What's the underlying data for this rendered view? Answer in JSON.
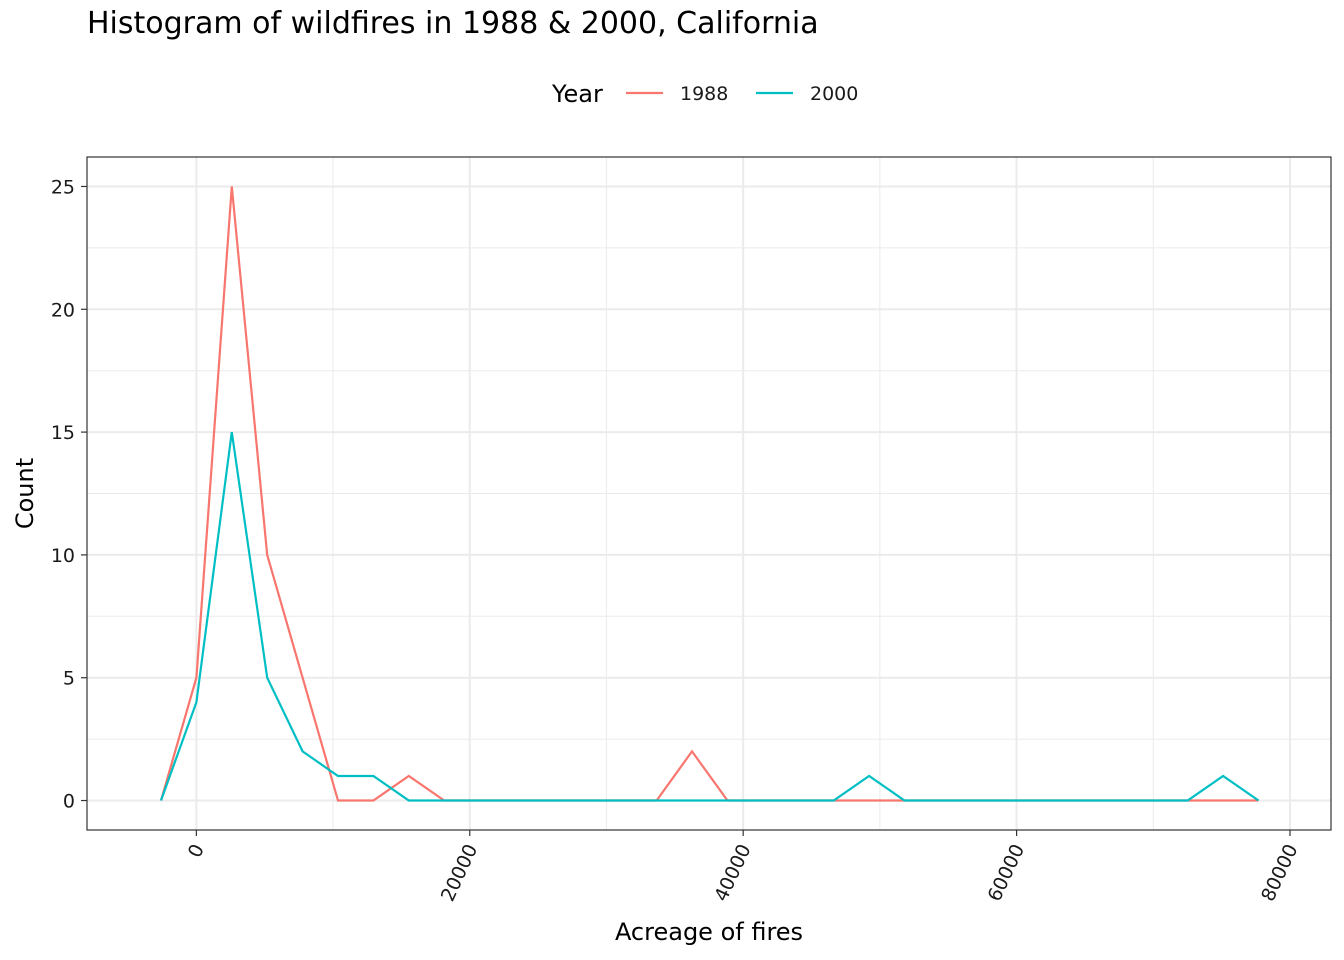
{
  "chart_data": {
    "type": "line",
    "title": "Histogram of wildfires in 1988 & 2000, California",
    "xlabel": "Acreage of fires",
    "ylabel": "Count",
    "legend_title": "Year",
    "legend_position": "top",
    "grid": true,
    "xlim": [
      -8000,
      83000
    ],
    "ylim": [
      -1.2,
      26.2
    ],
    "x_ticks": [
      0,
      20000,
      40000,
      60000,
      80000
    ],
    "x_tick_labels": [
      "0",
      "20000",
      "40000",
      "60000",
      "80000"
    ],
    "x_tick_rotation": 65,
    "y_ticks": [
      0,
      5,
      10,
      15,
      20,
      25
    ],
    "y_tick_labels": [
      "0",
      "5",
      "10",
      "15",
      "20",
      "25"
    ],
    "x": [
      -2590,
      0,
      2590,
      5180,
      7770,
      10360,
      12950,
      15540,
      18130,
      20720,
      23310,
      25900,
      28490,
      31080,
      33670,
      36260,
      38850,
      41440,
      44030,
      46620,
      49210,
      51800,
      54390,
      56980,
      59570,
      62160,
      64750,
      67340,
      69930,
      72520,
      75110,
      77700
    ],
    "series": [
      {
        "name": "1988",
        "color": "#F8766D",
        "values": [
          0,
          5,
          25,
          10,
          5,
          0,
          0,
          1,
          0,
          0,
          0,
          0,
          0,
          0,
          0,
          2,
          0,
          0,
          0,
          0,
          0,
          0,
          0,
          0,
          0,
          0,
          0,
          0,
          0,
          0,
          0,
          0
        ]
      },
      {
        "name": "2000",
        "color": "#00BFC4",
        "values": [
          0,
          4,
          15,
          5,
          2,
          1,
          1,
          0,
          0,
          0,
          0,
          0,
          0,
          0,
          0,
          0,
          0,
          0,
          0,
          0,
          1,
          0,
          0,
          0,
          0,
          0,
          0,
          0,
          0,
          0,
          1,
          0
        ]
      }
    ]
  }
}
